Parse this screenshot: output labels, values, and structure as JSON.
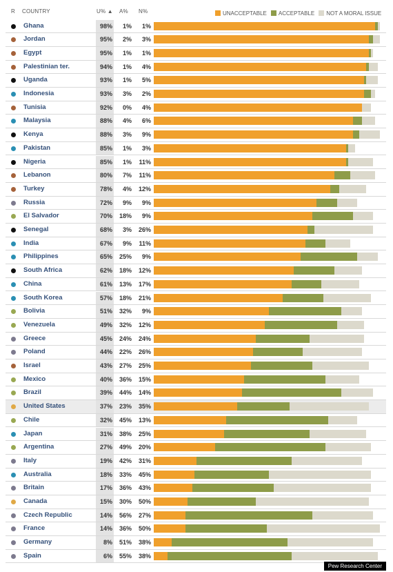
{
  "header": {
    "rank": "R",
    "country": "COUNTRY",
    "unacceptable_col": "U% ▲",
    "acceptable_col": "A%",
    "not_moral_col": "N%"
  },
  "legend": [
    {
      "label": "UNACCEPTABLE",
      "color": "#f0a02c"
    },
    {
      "label": "ACCEPTABLE",
      "color": "#8e9c49"
    },
    {
      "label": "NOT A MORAL ISSUE",
      "color": "#dcd9cc"
    }
  ],
  "colors": {
    "unacceptable": "#f0a02c",
    "acceptable": "#8e9c49",
    "not_moral": "#dcd9cc",
    "region_africa": "#111111",
    "region_middle_east": "#a5623a",
    "region_asia": "#2a8fb3",
    "region_europe": "#7d7a8e",
    "region_latin_america": "#99a852",
    "region_us_canada": "#e0a946"
  },
  "source": "Pew Research Center",
  "chart_data": {
    "type": "bar",
    "stacked": true,
    "orientation": "horizontal",
    "xlim": [
      0,
      100
    ],
    "series": [
      {
        "name": "UNACCEPTABLE"
      },
      {
        "name": "ACCEPTABLE"
      },
      {
        "name": "NOT A MORAL ISSUE"
      }
    ],
    "rows": [
      {
        "country": "Ghana",
        "region": "region_africa",
        "u": 98,
        "a": 1,
        "n": 1,
        "u_label": "98%",
        "a_label": "1%",
        "n_label": "1%"
      },
      {
        "country": "Jordan",
        "region": "region_middle_east",
        "u": 95,
        "a": 2,
        "n": 3,
        "u_label": "95%",
        "a_label": "2%",
        "n_label": "3%"
      },
      {
        "country": "Egypt",
        "region": "region_middle_east",
        "u": 95,
        "a": 1,
        "n": 1,
        "u_label": "95%",
        "a_label": "1%",
        "n_label": "1%"
      },
      {
        "country": "Palestinian ter.",
        "region": "region_middle_east",
        "u": 94,
        "a": 1,
        "n": 4,
        "u_label": "94%",
        "a_label": "1%",
        "n_label": "4%"
      },
      {
        "country": "Uganda",
        "region": "region_africa",
        "u": 93,
        "a": 1,
        "n": 5,
        "u_label": "93%",
        "a_label": "1%",
        "n_label": "5%"
      },
      {
        "country": "Indonesia",
        "region": "region_asia",
        "u": 93,
        "a": 3,
        "n": 2,
        "u_label": "93%",
        "a_label": "3%",
        "n_label": "2%"
      },
      {
        "country": "Tunisia",
        "region": "region_middle_east",
        "u": 92,
        "a": 0,
        "n": 4,
        "u_label": "92%",
        "a_label": "0%",
        "n_label": "4%"
      },
      {
        "country": "Malaysia",
        "region": "region_asia",
        "u": 88,
        "a": 4,
        "n": 6,
        "u_label": "88%",
        "a_label": "4%",
        "n_label": "6%"
      },
      {
        "country": "Kenya",
        "region": "region_africa",
        "u": 88,
        "a": 3,
        "n": 9,
        "u_label": "88%",
        "a_label": "3%",
        "n_label": "9%"
      },
      {
        "country": "Pakistan",
        "region": "region_asia",
        "u": 85,
        "a": 1,
        "n": 3,
        "u_label": "85%",
        "a_label": "1%",
        "n_label": "3%"
      },
      {
        "country": "Nigeria",
        "region": "region_africa",
        "u": 85,
        "a": 1,
        "n": 11,
        "u_label": "85%",
        "a_label": "1%",
        "n_label": "11%"
      },
      {
        "country": "Lebanon",
        "region": "region_middle_east",
        "u": 80,
        "a": 7,
        "n": 11,
        "u_label": "80%",
        "a_label": "7%",
        "n_label": "11%"
      },
      {
        "country": "Turkey",
        "region": "region_middle_east",
        "u": 78,
        "a": 4,
        "n": 12,
        "u_label": "78%",
        "a_label": "4%",
        "n_label": "12%"
      },
      {
        "country": "Russia",
        "region": "region_europe",
        "u": 72,
        "a": 9,
        "n": 9,
        "u_label": "72%",
        "a_label": "9%",
        "n_label": "9%"
      },
      {
        "country": "El Salvador",
        "region": "region_latin_america",
        "u": 70,
        "a": 18,
        "n": 9,
        "u_label": "70%",
        "a_label": "18%",
        "n_label": "9%"
      },
      {
        "country": "Senegal",
        "region": "region_africa",
        "u": 68,
        "a": 3,
        "n": 26,
        "u_label": "68%",
        "a_label": "3%",
        "n_label": "26%"
      },
      {
        "country": "India",
        "region": "region_asia",
        "u": 67,
        "a": 9,
        "n": 11,
        "u_label": "67%",
        "a_label": "9%",
        "n_label": "11%"
      },
      {
        "country": "Philippines",
        "region": "region_asia",
        "u": 65,
        "a": 25,
        "n": 9,
        "u_label": "65%",
        "a_label": "25%",
        "n_label": "9%"
      },
      {
        "country": "South Africa",
        "region": "region_africa",
        "u": 62,
        "a": 18,
        "n": 12,
        "u_label": "62%",
        "a_label": "18%",
        "n_label": "12%"
      },
      {
        "country": "China",
        "region": "region_asia",
        "u": 61,
        "a": 13,
        "n": 17,
        "u_label": "61%",
        "a_label": "13%",
        "n_label": "17%"
      },
      {
        "country": "South Korea",
        "region": "region_asia",
        "u": 57,
        "a": 18,
        "n": 21,
        "u_label": "57%",
        "a_label": "18%",
        "n_label": "21%"
      },
      {
        "country": "Bolivia",
        "region": "region_latin_america",
        "u": 51,
        "a": 32,
        "n": 9,
        "u_label": "51%",
        "a_label": "32%",
        "n_label": "9%"
      },
      {
        "country": "Venezuela",
        "region": "region_latin_america",
        "u": 49,
        "a": 32,
        "n": 12,
        "u_label": "49%",
        "a_label": "32%",
        "n_label": "12%"
      },
      {
        "country": "Greece",
        "region": "region_europe",
        "u": 45,
        "a": 24,
        "n": 24,
        "u_label": "45%",
        "a_label": "24%",
        "n_label": "24%"
      },
      {
        "country": "Poland",
        "region": "region_europe",
        "u": 44,
        "a": 22,
        "n": 26,
        "u_label": "44%",
        "a_label": "22%",
        "n_label": "26%"
      },
      {
        "country": "Israel",
        "region": "region_middle_east",
        "u": 43,
        "a": 27,
        "n": 25,
        "u_label": "43%",
        "a_label": "27%",
        "n_label": "25%"
      },
      {
        "country": "Mexico",
        "region": "region_latin_america",
        "u": 40,
        "a": 36,
        "n": 15,
        "u_label": "40%",
        "a_label": "36%",
        "n_label": "15%"
      },
      {
        "country": "Brazil",
        "region": "region_latin_america",
        "u": 39,
        "a": 44,
        "n": 14,
        "u_label": "39%",
        "a_label": "44%",
        "n_label": "14%"
      },
      {
        "country": "United States",
        "region": "region_us_canada",
        "u": 37,
        "a": 23,
        "n": 35,
        "u_label": "37%",
        "a_label": "23%",
        "n_label": "35%",
        "highlight": true
      },
      {
        "country": "Chile",
        "region": "region_latin_america",
        "u": 32,
        "a": 45,
        "n": 13,
        "u_label": "32%",
        "a_label": "45%",
        "n_label": "13%"
      },
      {
        "country": "Japan",
        "region": "region_asia",
        "u": 31,
        "a": 38,
        "n": 25,
        "u_label": "31%",
        "a_label": "38%",
        "n_label": "25%"
      },
      {
        "country": "Argentina",
        "region": "region_latin_america",
        "u": 27,
        "a": 49,
        "n": 20,
        "u_label": "27%",
        "a_label": "49%",
        "n_label": "20%"
      },
      {
        "country": "Italy",
        "region": "region_europe",
        "u": 19,
        "a": 42,
        "n": 31,
        "u_label": "19%",
        "a_label": "42%",
        "n_label": "31%"
      },
      {
        "country": "Australia",
        "region": "region_asia",
        "u": 18,
        "a": 33,
        "n": 45,
        "u_label": "18%",
        "a_label": "33%",
        "n_label": "45%"
      },
      {
        "country": "Britain",
        "region": "region_europe",
        "u": 17,
        "a": 36,
        "n": 43,
        "u_label": "17%",
        "a_label": "36%",
        "n_label": "43%"
      },
      {
        "country": "Canada",
        "region": "region_us_canada",
        "u": 15,
        "a": 30,
        "n": 50,
        "u_label": "15%",
        "a_label": "30%",
        "n_label": "50%"
      },
      {
        "country": "Czech Republic",
        "region": "region_europe",
        "u": 14,
        "a": 56,
        "n": 27,
        "u_label": "14%",
        "a_label": "56%",
        "n_label": "27%"
      },
      {
        "country": "France",
        "region": "region_europe",
        "u": 14,
        "a": 36,
        "n": 50,
        "u_label": "14%",
        "a_label": "36%",
        "n_label": "50%"
      },
      {
        "country": "Germany",
        "region": "region_europe",
        "u": 8,
        "a": 51,
        "n": 38,
        "u_label": "8%",
        "a_label": "51%",
        "n_label": "38%"
      },
      {
        "country": "Spain",
        "region": "region_europe",
        "u": 6,
        "a": 55,
        "n": 38,
        "u_label": "6%",
        "a_label": "55%",
        "n_label": "38%"
      }
    ]
  }
}
